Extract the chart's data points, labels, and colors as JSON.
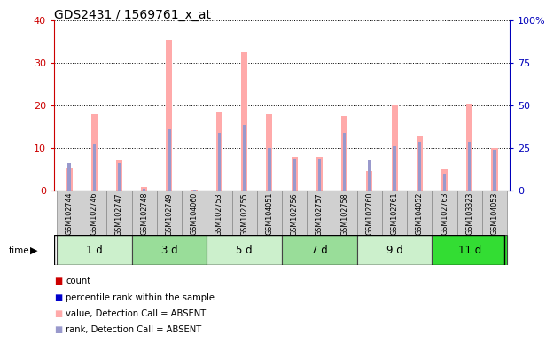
{
  "title": "GDS2431 / 1569761_x_at",
  "samples": [
    "GSM102744",
    "GSM102746",
    "GSM102747",
    "GSM102748",
    "GSM102749",
    "GSM104060",
    "GSM102753",
    "GSM102755",
    "GSM104051",
    "GSM102756",
    "GSM102757",
    "GSM102758",
    "GSM102760",
    "GSM102761",
    "GSM104052",
    "GSM102763",
    "GSM103323",
    "GSM104053"
  ],
  "groups": [
    {
      "label": "1 d",
      "indices": [
        0,
        1,
        2
      ],
      "color": "#ccf0cc"
    },
    {
      "label": "3 d",
      "indices": [
        3,
        4,
        5
      ],
      "color": "#99dd99"
    },
    {
      "label": "5 d",
      "indices": [
        6,
        7,
        8
      ],
      "color": "#ccf0cc"
    },
    {
      "label": "7 d",
      "indices": [
        9,
        10,
        11
      ],
      "color": "#99dd99"
    },
    {
      "label": "9 d",
      "indices": [
        12,
        13,
        14
      ],
      "color": "#ccf0cc"
    },
    {
      "label": "11 d",
      "indices": [
        15,
        16,
        17
      ],
      "color": "#33dd33"
    }
  ],
  "pink_values": [
    5.5,
    18.0,
    7.0,
    0.8,
    35.5,
    0.3,
    18.5,
    32.5,
    18.0,
    8.0,
    8.0,
    17.5,
    4.5,
    20.0,
    13.0,
    5.0,
    20.5,
    10.0
  ],
  "blue_values": [
    6.5,
    11.0,
    6.5,
    0.5,
    14.5,
    0.3,
    13.5,
    15.5,
    10.0,
    7.5,
    7.5,
    13.5,
    7.0,
    10.5,
    11.5,
    4.0,
    11.5,
    9.5
  ],
  "ylim_left": [
    0,
    40
  ],
  "ylim_right": [
    0,
    100
  ],
  "yticks_left": [
    0,
    10,
    20,
    30,
    40
  ],
  "yticks_right": [
    0,
    25,
    50,
    75,
    100
  ],
  "ytick_labels_right": [
    "0",
    "25",
    "50",
    "75",
    "100%"
  ],
  "pink_color": "#ffaaaa",
  "blue_color": "#9999cc",
  "red_color": "#cc0000",
  "dark_blue_color": "#0000cc",
  "left_tick_color": "#cc0000",
  "right_tick_color": "#0000bb",
  "legend_items": [
    {
      "color": "#cc0000",
      "label": "count"
    },
    {
      "color": "#0000cc",
      "label": "percentile rank within the sample"
    },
    {
      "color": "#ffaaaa",
      "label": "value, Detection Call = ABSENT"
    },
    {
      "color": "#9999cc",
      "label": "rank, Detection Call = ABSENT"
    }
  ]
}
